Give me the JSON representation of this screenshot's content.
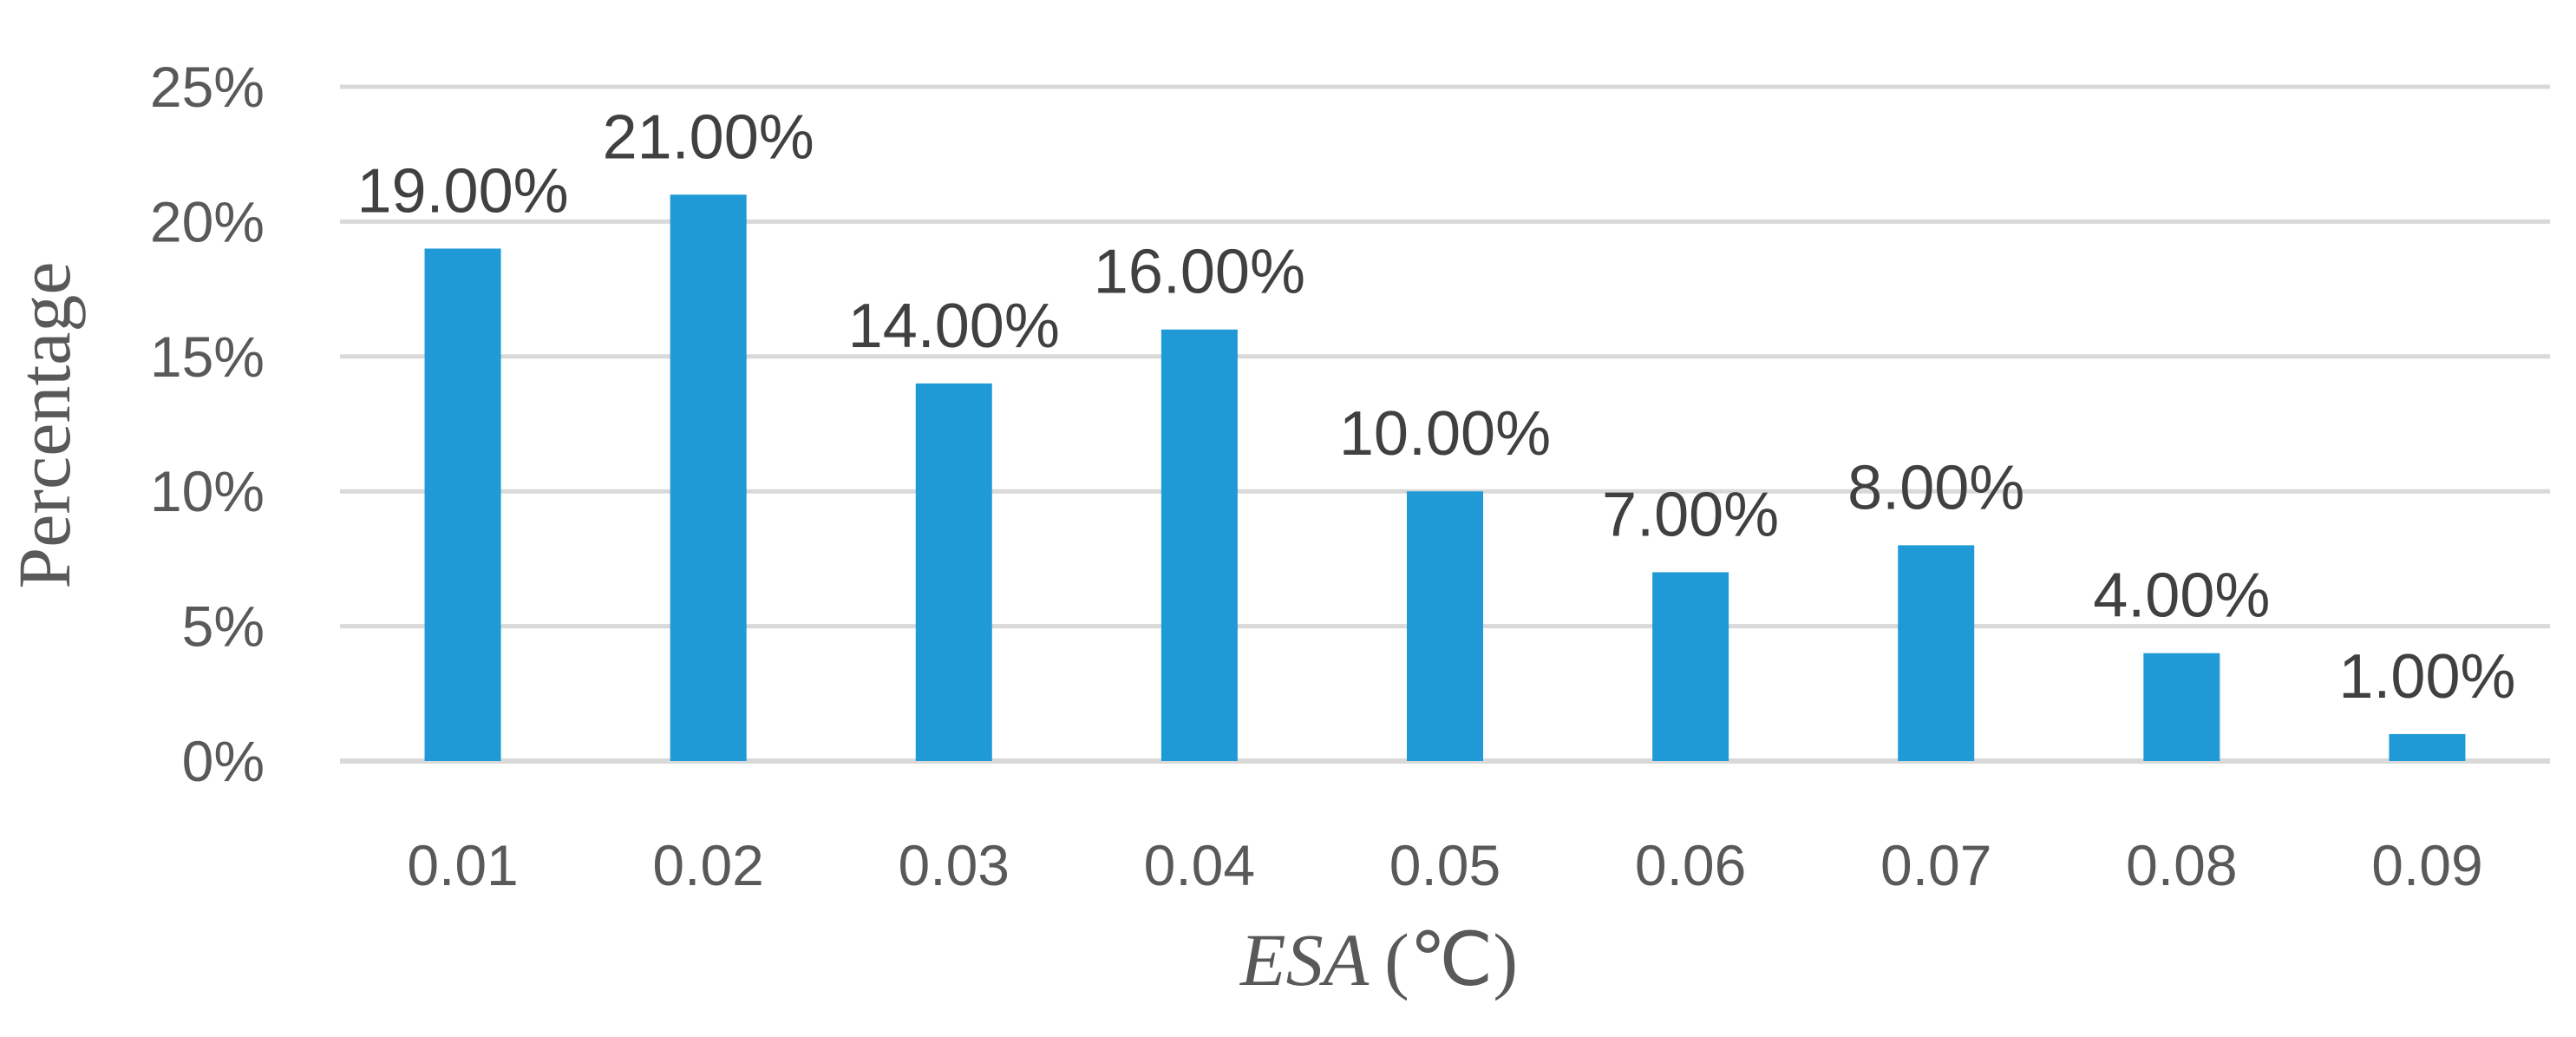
{
  "chart_data": {
    "type": "bar",
    "categories": [
      "0.01",
      "0.02",
      "0.03",
      "0.04",
      "0.05",
      "0.06",
      "0.07",
      "0.08",
      "0.09"
    ],
    "values": [
      19,
      21,
      14,
      16,
      10,
      7,
      8,
      4,
      1
    ],
    "data_labels": [
      "19.00%",
      "21.00%",
      "14.00%",
      "16.00%",
      "10.00%",
      "7.00%",
      "8.00%",
      "4.00%",
      "1.00%"
    ],
    "y_ticks": [
      0,
      5,
      10,
      15,
      20,
      25
    ],
    "y_tick_labels": [
      "0%",
      "5%",
      "10%",
      "15%",
      "20%",
      "25%"
    ],
    "ylim": [
      0,
      25
    ],
    "title": "",
    "xlabel": {
      "variable": "ESA",
      "unit": "(℃)"
    },
    "ylabel": "Percentage",
    "grid": true,
    "legend": "none",
    "bar_color": "#1f9ad6",
    "grid_color": "#d9d9d9",
    "text_color": "#595959",
    "label_color": "#404040"
  }
}
